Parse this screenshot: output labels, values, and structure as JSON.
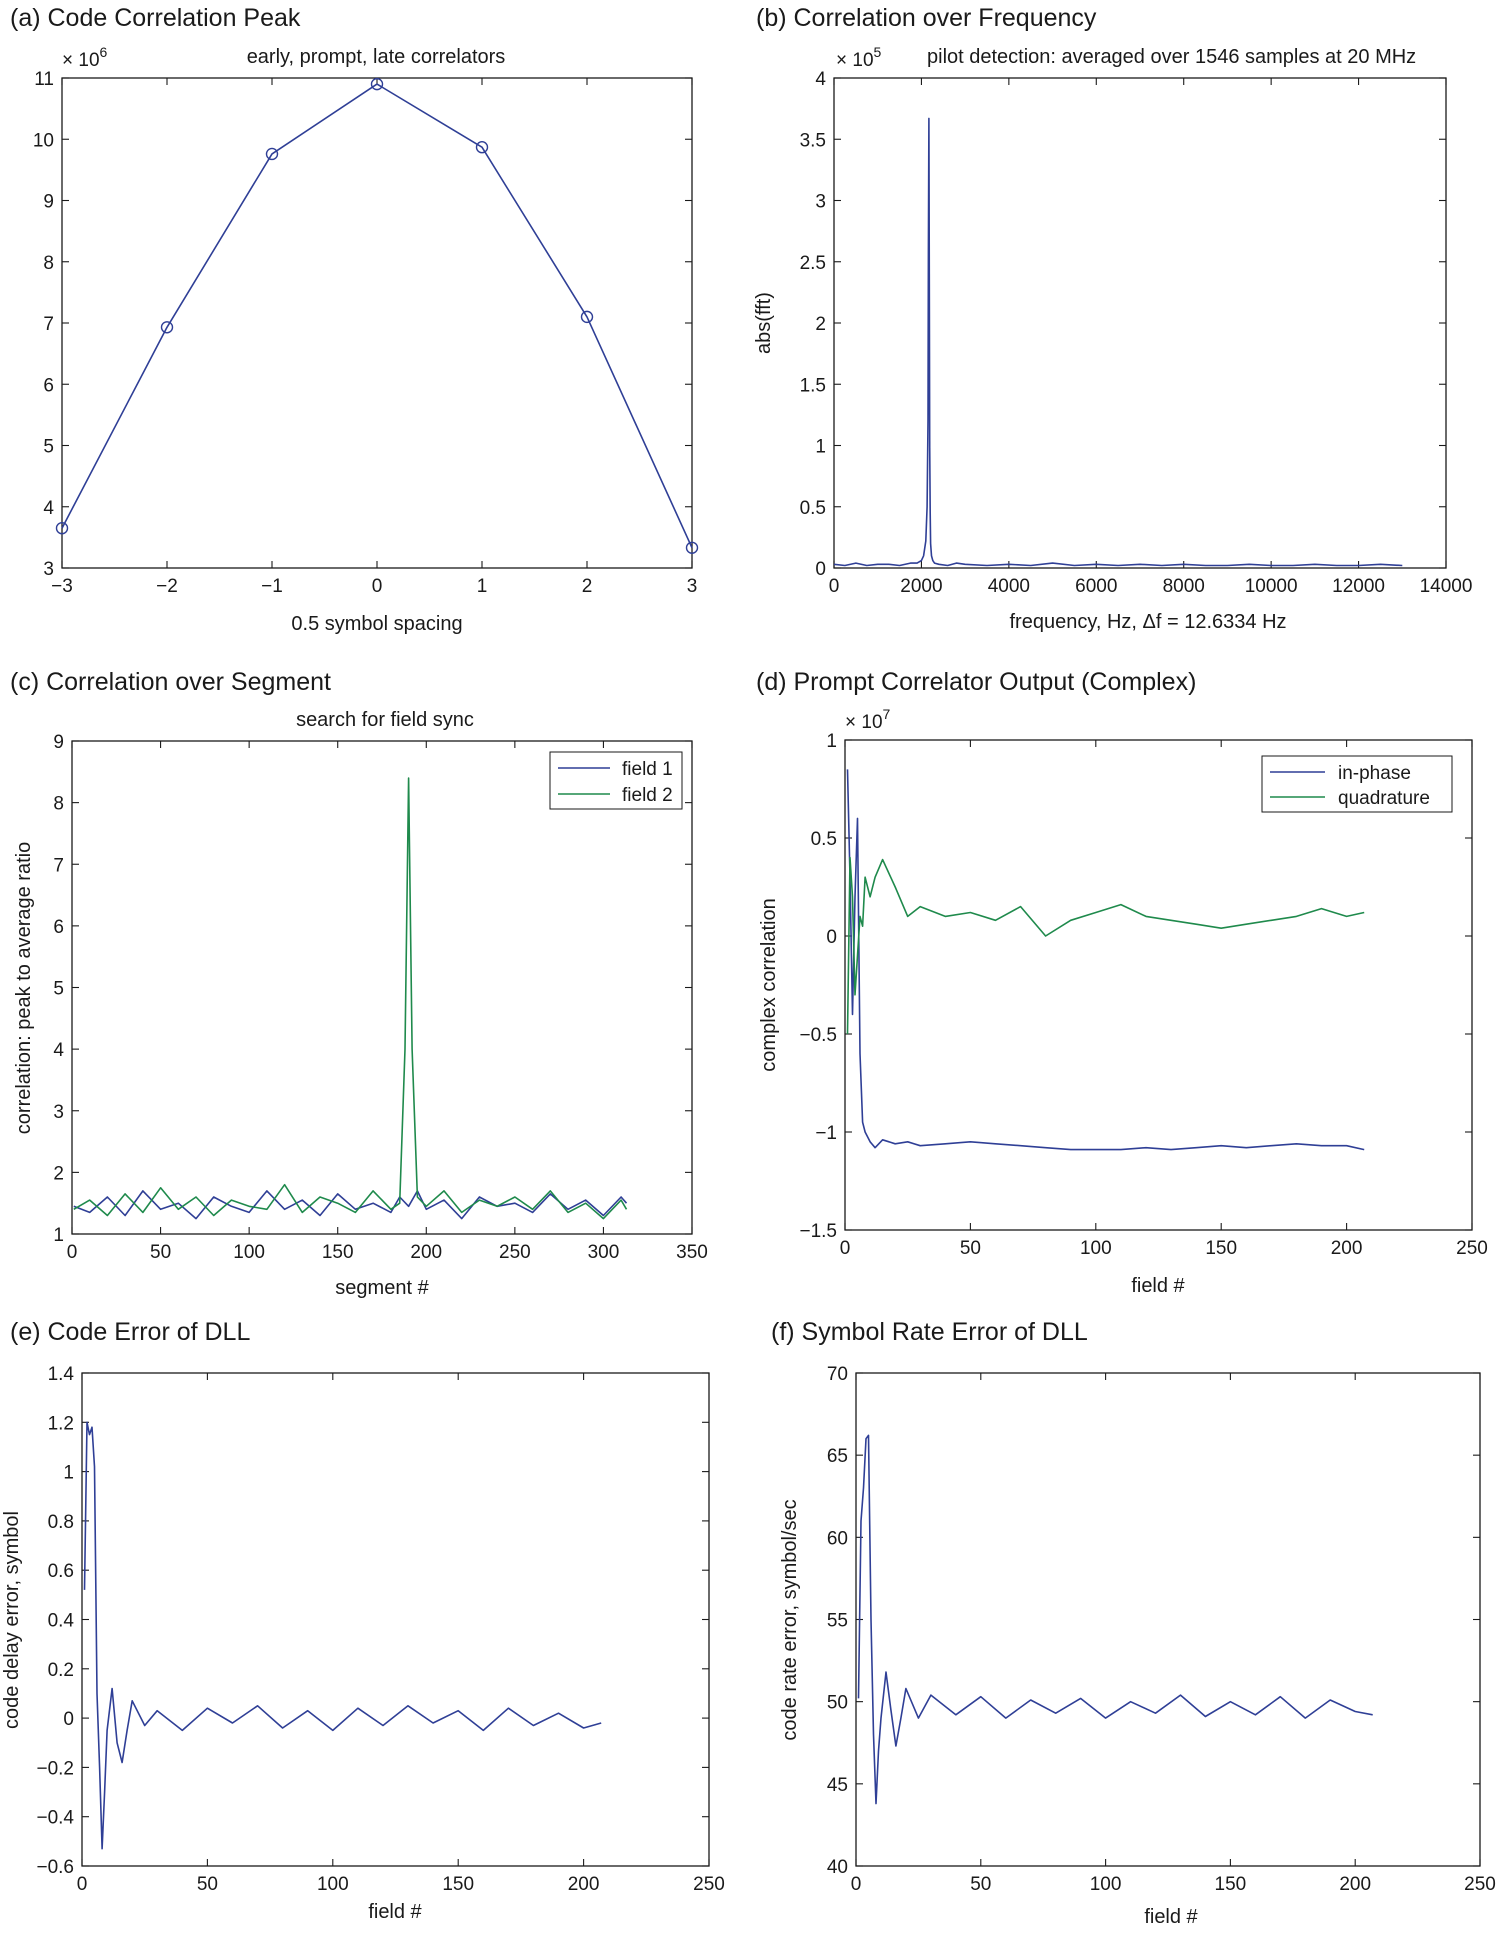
{
  "charts": [
    {
      "id": "a",
      "title": "(a) Code Correlation Peak",
      "subtitle": "early, prompt, late correlators",
      "xlabel": "0.5 symbol spacing",
      "ylabel": "",
      "multiplier": "× 10",
      "multiplier_exp": "6",
      "xtick_labels": [
        "−3",
        "−2",
        "−1",
        "0",
        "1",
        "2",
        "3"
      ],
      "ytick_labels": [
        "3",
        "4",
        "5",
        "6",
        "7",
        "8",
        "9",
        "10",
        "11"
      ]
    },
    {
      "id": "b",
      "title": "(b) Correlation over Frequency",
      "subtitle": "pilot detection: averaged over 1546 samples at 20 MHz",
      "xlabel": "frequency, Hz, Δf = 12.6334 Hz",
      "ylabel": "abs(fft)",
      "multiplier": "× 10",
      "multiplier_exp": "5",
      "xtick_labels": [
        "0",
        "2000",
        "4000",
        "6000",
        "8000",
        "10000",
        "12000",
        "14000"
      ],
      "ytick_labels": [
        "0",
        "0.5",
        "1",
        "1.5",
        "2",
        "2.5",
        "3",
        "3.5",
        "4"
      ]
    },
    {
      "id": "c",
      "title": "(c) Correlation over Segment",
      "subtitle": "search for field sync",
      "xlabel": "segment #",
      "ylabel": "correlation: peak to average ratio",
      "multiplier": "",
      "multiplier_exp": "",
      "xtick_labels": [
        "0",
        "50",
        "100",
        "150",
        "200",
        "250",
        "300",
        "350"
      ],
      "ytick_labels": [
        "1",
        "2",
        "3",
        "4",
        "5",
        "6",
        "7",
        "8",
        "9"
      ]
    },
    {
      "id": "d",
      "title": "(d) Prompt Correlator Output (Complex)",
      "subtitle": "",
      "xlabel": "field #",
      "ylabel": "complex correlation",
      "multiplier": "× 10",
      "multiplier_exp": "7",
      "xtick_labels": [
        "0",
        "50",
        "100",
        "150",
        "200",
        "250"
      ],
      "ytick_labels": [
        "−1.5",
        "−1",
        "−0.5",
        "0",
        "0.5",
        "1"
      ]
    },
    {
      "id": "e",
      "title": "(e) Code Error of DLL",
      "subtitle": "",
      "xlabel": "field #",
      "ylabel": "code delay error, symbol",
      "multiplier": "",
      "multiplier_exp": "",
      "xtick_labels": [
        "0",
        "50",
        "100",
        "150",
        "200",
        "250"
      ],
      "ytick_labels": [
        "−0.6",
        "−0.4",
        "−0.2",
        "0",
        "0.2",
        "0.4",
        "0.6",
        "0.8",
        "1",
        "1.2",
        "1.4"
      ]
    },
    {
      "id": "f",
      "title": "(f) Symbol Rate Error of DLL",
      "subtitle": "",
      "xlabel": "field #",
      "ylabel": "code rate error, symbol/sec",
      "multiplier": "",
      "multiplier_exp": "",
      "xtick_labels": [
        "0",
        "50",
        "100",
        "150",
        "200",
        "250"
      ],
      "ytick_labels": [
        "40",
        "45",
        "50",
        "55",
        "60",
        "65",
        "70"
      ]
    }
  ],
  "chart_data": [
    {
      "id": "a",
      "type": "line",
      "title": "(a) Code Correlation Peak",
      "subtitle": "early, prompt, late correlators",
      "xlabel": "0.5 symbol spacing",
      "ylabel": "",
      "y_multiplier": 1000000,
      "xlim": [
        -3,
        3
      ],
      "ylim": [
        3,
        11
      ],
      "xticks": [
        -3,
        -2,
        -1,
        0,
        1,
        2,
        3
      ],
      "yticks": [
        3,
        4,
        5,
        6,
        7,
        8,
        9,
        10,
        11
      ],
      "markers": "circle",
      "grid": false,
      "series": [
        {
          "color": "#2f3f96",
          "x": [
            -3,
            -2,
            -1,
            0,
            1,
            2,
            3
          ],
          "y": [
            3.65,
            6.93,
            9.76,
            10.9,
            9.87,
            7.1,
            3.33
          ]
        }
      ]
    },
    {
      "id": "b",
      "type": "line",
      "title": "(b) Correlation over Frequency",
      "subtitle": "pilot detection: averaged over 1546 samples at 20 MHz",
      "xlabel": "frequency, Hz, Δf = 12.6334 Hz",
      "ylabel": "abs(fft)",
      "y_multiplier": 100000,
      "xlim": [
        0,
        14000
      ],
      "ylim": [
        0,
        4
      ],
      "xticks": [
        0,
        2000,
        4000,
        6000,
        8000,
        10000,
        12000,
        14000
      ],
      "yticks": [
        0,
        0.5,
        1,
        1.5,
        2,
        2.5,
        3,
        3.5,
        4
      ],
      "grid": false,
      "series": [
        {
          "color": "#2f3f96",
          "x": [
            0,
            250,
            500,
            750,
            1000,
            1250,
            1500,
            1750,
            1900,
            2000,
            2050,
            2100,
            2130,
            2150,
            2160,
            2170,
            2180,
            2190,
            2200,
            2210,
            2230,
            2260,
            2300,
            2400,
            2600,
            2800,
            3000,
            3500,
            4000,
            4500,
            5000,
            5500,
            6000,
            6500,
            7000,
            7500,
            8000,
            8500,
            9000,
            9500,
            10000,
            10500,
            11000,
            11500,
            12000,
            12500,
            13000
          ],
          "y": [
            0.03,
            0.02,
            0.04,
            0.02,
            0.03,
            0.03,
            0.02,
            0.04,
            0.04,
            0.06,
            0.1,
            0.22,
            0.5,
            1.2,
            2.6,
            3.67,
            2.4,
            1.0,
            0.45,
            0.2,
            0.1,
            0.06,
            0.04,
            0.03,
            0.02,
            0.04,
            0.03,
            0.02,
            0.03,
            0.02,
            0.04,
            0.02,
            0.03,
            0.02,
            0.03,
            0.02,
            0.03,
            0.02,
            0.02,
            0.03,
            0.02,
            0.02,
            0.03,
            0.02,
            0.02,
            0.03,
            0.02
          ]
        }
      ]
    },
    {
      "id": "c",
      "type": "line",
      "title": "(c) Correlation over Segment",
      "subtitle": "search for field sync",
      "xlabel": "segment #",
      "ylabel": "correlation: peak to average ratio",
      "xlim": [
        0,
        350
      ],
      "ylim": [
        1,
        9
      ],
      "xticks": [
        0,
        50,
        100,
        150,
        200,
        250,
        300,
        350
      ],
      "yticks": [
        1,
        2,
        3,
        4,
        5,
        6,
        7,
        8,
        9
      ],
      "legend": "top-right",
      "grid": false,
      "series": [
        {
          "name": "field 1",
          "color": "#2f3f96",
          "x": [
            1,
            10,
            20,
            30,
            40,
            50,
            60,
            70,
            80,
            90,
            100,
            110,
            120,
            130,
            140,
            150,
            160,
            170,
            180,
            185,
            190,
            195,
            200,
            210,
            220,
            230,
            240,
            250,
            260,
            270,
            280,
            290,
            300,
            310,
            313
          ],
          "y": [
            1.45,
            1.35,
            1.6,
            1.3,
            1.7,
            1.4,
            1.5,
            1.25,
            1.6,
            1.45,
            1.35,
            1.7,
            1.4,
            1.55,
            1.3,
            1.65,
            1.4,
            1.5,
            1.35,
            1.6,
            1.45,
            1.7,
            1.4,
            1.55,
            1.25,
            1.6,
            1.45,
            1.5,
            1.35,
            1.65,
            1.4,
            1.55,
            1.3,
            1.6,
            1.5
          ]
        },
        {
          "name": "field 2",
          "color": "#1f8a4c",
          "x": [
            1,
            10,
            20,
            30,
            40,
            50,
            60,
            70,
            80,
            90,
            100,
            110,
            120,
            130,
            140,
            150,
            160,
            170,
            180,
            185,
            188,
            190,
            192,
            195,
            200,
            210,
            220,
            230,
            240,
            250,
            260,
            270,
            280,
            290,
            300,
            310,
            313
          ],
          "y": [
            1.4,
            1.55,
            1.3,
            1.65,
            1.35,
            1.75,
            1.4,
            1.6,
            1.3,
            1.55,
            1.45,
            1.4,
            1.8,
            1.35,
            1.6,
            1.5,
            1.35,
            1.7,
            1.4,
            1.5,
            4.0,
            8.4,
            4.0,
            1.6,
            1.45,
            1.7,
            1.35,
            1.55,
            1.45,
            1.6,
            1.4,
            1.7,
            1.35,
            1.5,
            1.25,
            1.55,
            1.4
          ]
        }
      ]
    },
    {
      "id": "d",
      "type": "line",
      "title": "(d) Prompt Correlator Output (Complex)",
      "subtitle": "",
      "xlabel": "field #",
      "ylabel": "complex correlation",
      "y_multiplier": 10000000,
      "xlim": [
        0,
        250
      ],
      "ylim": [
        -1.5,
        1
      ],
      "xticks": [
        0,
        50,
        100,
        150,
        200,
        250
      ],
      "yticks": [
        -1.5,
        -1,
        -0.5,
        0,
        0.5,
        1
      ],
      "legend": "top-right",
      "grid": false,
      "series": [
        {
          "name": "in-phase",
          "color": "#2f3f96",
          "x": [
            1,
            2,
            3,
            4,
            5,
            6,
            7,
            8,
            10,
            12,
            15,
            20,
            25,
            30,
            40,
            50,
            60,
            70,
            80,
            90,
            100,
            110,
            120,
            130,
            140,
            150,
            160,
            170,
            180,
            190,
            200,
            207
          ],
          "y": [
            0.85,
            0.3,
            -0.4,
            0.2,
            0.6,
            -0.6,
            -0.95,
            -1.0,
            -1.05,
            -1.08,
            -1.04,
            -1.06,
            -1.05,
            -1.07,
            -1.06,
            -1.05,
            -1.06,
            -1.07,
            -1.08,
            -1.09,
            -1.09,
            -1.09,
            -1.08,
            -1.09,
            -1.08,
            -1.07,
            -1.08,
            -1.07,
            -1.06,
            -1.07,
            -1.07,
            -1.09
          ]
        },
        {
          "name": "quadrature",
          "color": "#1f8a4c",
          "x": [
            1,
            2,
            3,
            4,
            5,
            6,
            7,
            8,
            10,
            12,
            15,
            20,
            25,
            30,
            40,
            50,
            60,
            70,
            80,
            90,
            100,
            110,
            120,
            130,
            140,
            150,
            160,
            170,
            180,
            190,
            200,
            207
          ],
          "y": [
            -0.5,
            0.4,
            0.2,
            -0.3,
            -0.1,
            0.1,
            0.05,
            0.3,
            0.2,
            0.3,
            0.39,
            0.25,
            0.1,
            0.15,
            0.1,
            0.12,
            0.08,
            0.15,
            0.0,
            0.08,
            0.12,
            0.16,
            0.1,
            0.08,
            0.06,
            0.04,
            0.06,
            0.08,
            0.1,
            0.14,
            0.1,
            0.12
          ]
        }
      ]
    },
    {
      "id": "e",
      "type": "line",
      "title": "(e) Code Error of DLL",
      "subtitle": "",
      "xlabel": "field #",
      "ylabel": "code delay error, symbol",
      "xlim": [
        0,
        250
      ],
      "ylim": [
        -0.6,
        1.4
      ],
      "xticks": [
        0,
        50,
        100,
        150,
        200,
        250
      ],
      "yticks": [
        -0.6,
        -0.4,
        -0.2,
        0,
        0.2,
        0.4,
        0.6,
        0.8,
        1,
        1.2,
        1.4
      ],
      "grid": false,
      "series": [
        {
          "color": "#2f3f96",
          "x": [
            1,
            2,
            3,
            4,
            5,
            6,
            7,
            8,
            9,
            10,
            12,
            14,
            16,
            18,
            20,
            25,
            30,
            40,
            50,
            60,
            70,
            80,
            90,
            100,
            110,
            120,
            130,
            140,
            150,
            160,
            170,
            180,
            190,
            200,
            207
          ],
          "y": [
            0.52,
            1.2,
            1.15,
            1.18,
            1.02,
            0.1,
            -0.2,
            -0.53,
            -0.3,
            -0.05,
            0.12,
            -0.1,
            -0.18,
            -0.05,
            0.07,
            -0.03,
            0.03,
            -0.05,
            0.04,
            -0.02,
            0.05,
            -0.04,
            0.03,
            -0.05,
            0.04,
            -0.03,
            0.05,
            -0.02,
            0.03,
            -0.05,
            0.04,
            -0.03,
            0.02,
            -0.04,
            -0.02
          ]
        }
      ]
    },
    {
      "id": "f",
      "type": "line",
      "title": "(f) Symbol Rate Error of DLL",
      "subtitle": "",
      "xlabel": "field #",
      "ylabel": "code rate error, symbol/sec",
      "xlim": [
        0,
        250
      ],
      "ylim": [
        40,
        70
      ],
      "xticks": [
        0,
        50,
        100,
        150,
        200,
        250
      ],
      "yticks": [
        40,
        45,
        50,
        55,
        60,
        65,
        70
      ],
      "grid": false,
      "series": [
        {
          "color": "#2f3f96",
          "x": [
            1,
            2,
            3,
            4,
            5,
            6,
            7,
            8,
            9,
            10,
            12,
            14,
            16,
            18,
            20,
            25,
            30,
            40,
            50,
            60,
            70,
            80,
            90,
            100,
            110,
            120,
            130,
            140,
            150,
            160,
            170,
            180,
            190,
            200,
            207
          ],
          "y": [
            50.2,
            61.0,
            63.0,
            66.0,
            66.2,
            55.0,
            48.0,
            43.8,
            47.0,
            49.0,
            51.8,
            49.5,
            47.3,
            49.0,
            50.8,
            49.0,
            50.4,
            49.2,
            50.3,
            49.0,
            50.1,
            49.3,
            50.2,
            49.0,
            50.0,
            49.3,
            50.4,
            49.1,
            50.0,
            49.2,
            50.3,
            49.0,
            50.1,
            49.4,
            49.2
          ]
        }
      ]
    }
  ]
}
